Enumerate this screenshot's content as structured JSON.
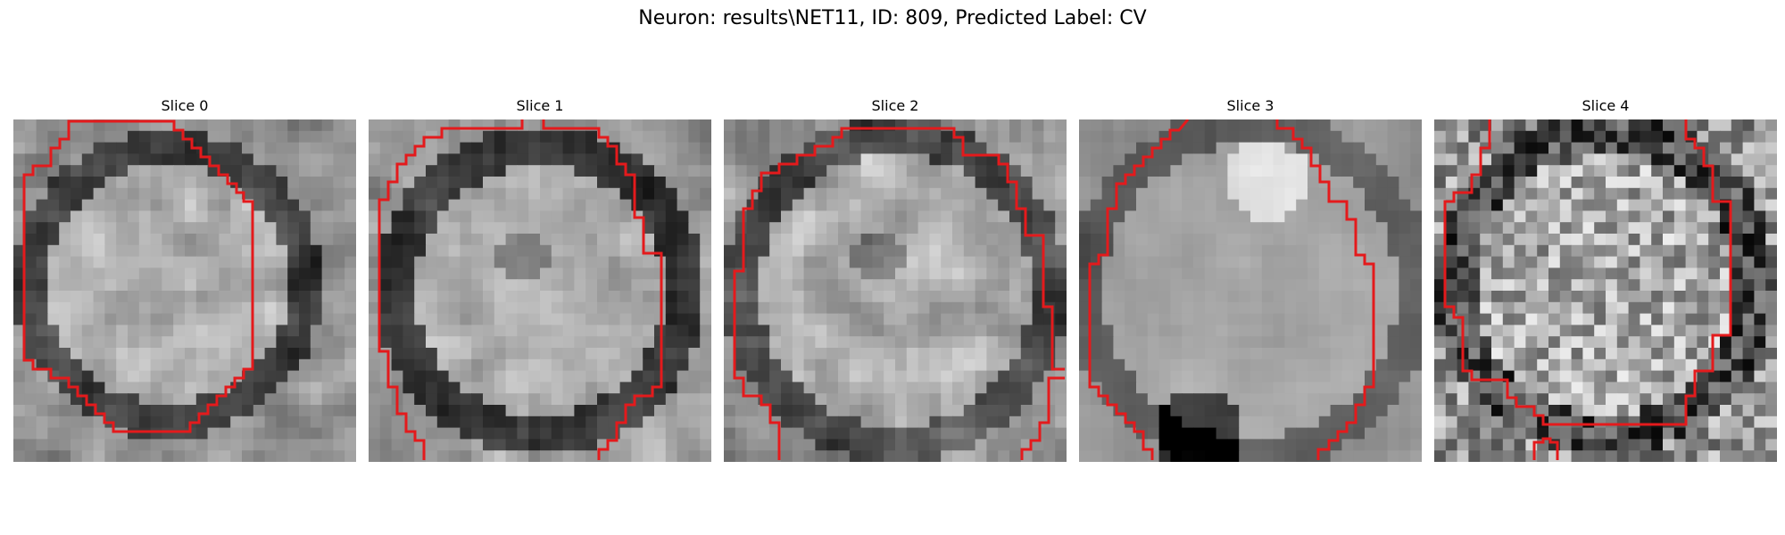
{
  "figure": {
    "title": "Neuron: results\\NET11, ID: 809, Predicted Label: CV"
  },
  "panels": [
    {
      "title": "Slice 0"
    },
    {
      "title": "Slice 1"
    },
    {
      "title": "Slice 2"
    },
    {
      "title": "Slice 3"
    },
    {
      "title": "Slice 4"
    }
  ],
  "colors": {
    "contour": "#e41a1c"
  }
}
